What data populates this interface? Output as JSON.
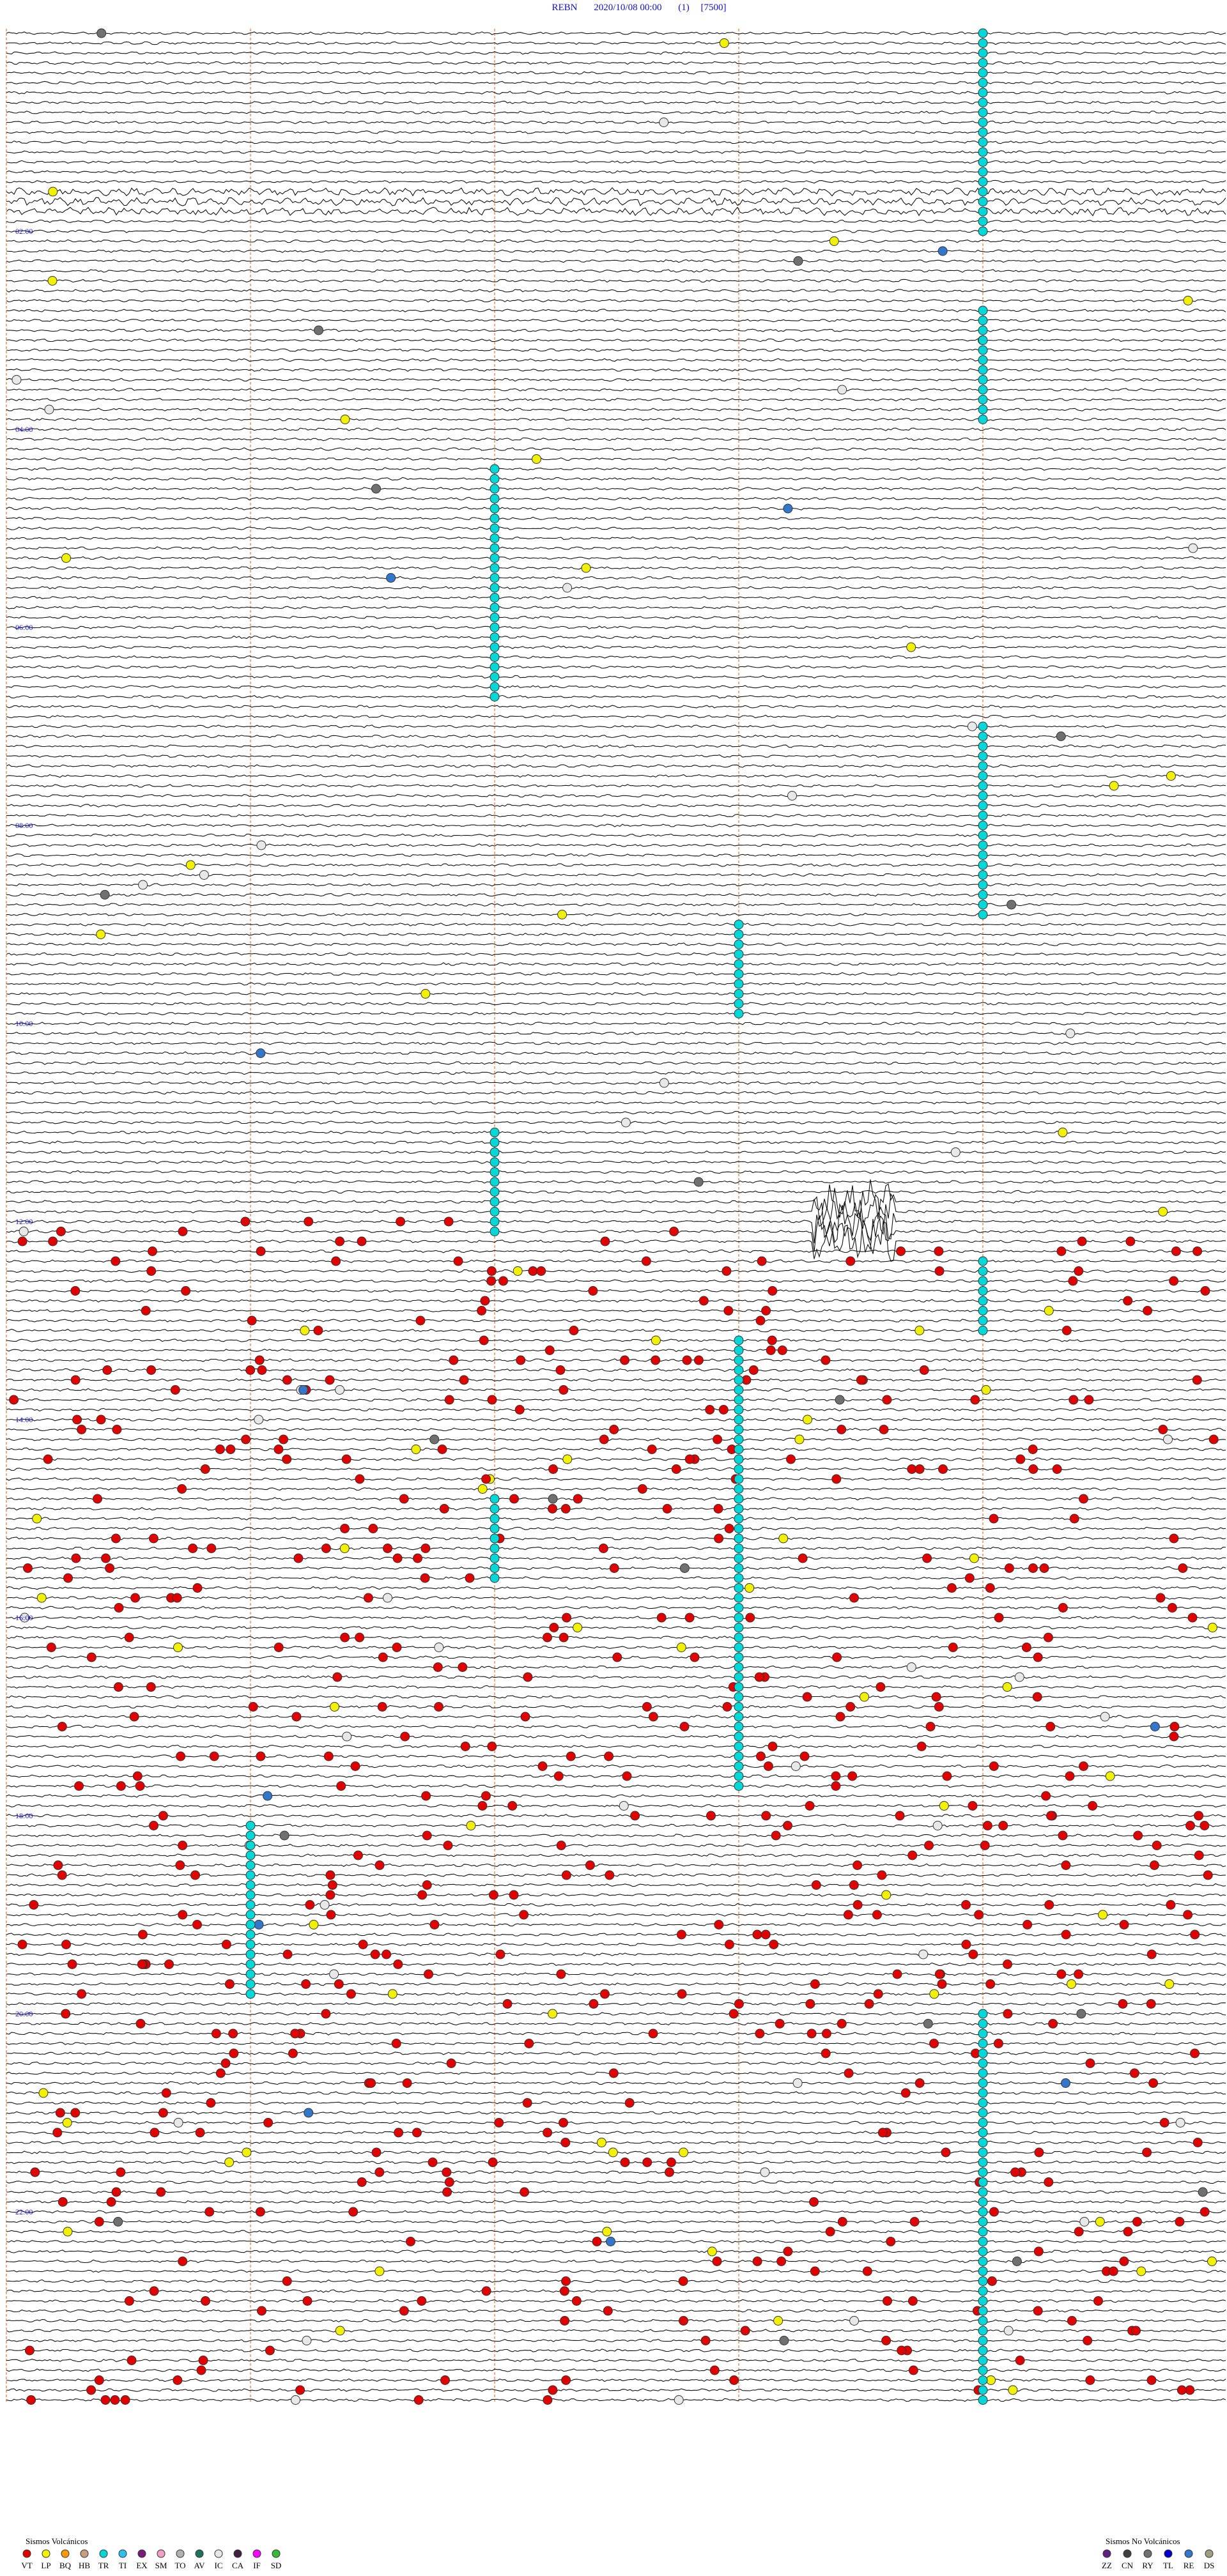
{
  "header": {
    "station": "REBN",
    "datetime": "2020/10/08 00:00",
    "channel": "(1)",
    "scale": "[7500]"
  },
  "hour_labels": [
    "02:00",
    "04:00",
    "06:00",
    "08:00",
    "10:00",
    "12:00",
    "14:00",
    "16:00",
    "18:00",
    "20:00",
    "22:00"
  ],
  "legend_volcanic": {
    "title": "Sismos Volcánicos",
    "items": [
      {
        "code": "VT",
        "color": "#e00000"
      },
      {
        "code": "LP",
        "color": "#f2f200"
      },
      {
        "code": "BQ",
        "color": "#ff9900"
      },
      {
        "code": "HB",
        "color": "#c8a080"
      },
      {
        "code": "TR",
        "color": "#00d8d8"
      },
      {
        "code": "TI",
        "color": "#30c0f0"
      },
      {
        "code": "EX",
        "color": "#7a1a7a"
      },
      {
        "code": "SM",
        "color": "#f0a0c8"
      },
      {
        "code": "TO",
        "color": "#b0b0b0"
      },
      {
        "code": "AV",
        "color": "#207060"
      },
      {
        "code": "IC",
        "color": "#e8e8e8"
      },
      {
        "code": "CA",
        "color": "#402040"
      },
      {
        "code": "IF",
        "color": "#ff00ff"
      },
      {
        "code": "SD",
        "color": "#33bb33"
      }
    ]
  },
  "legend_non_volcanic": {
    "title": "Sismos No Volcánicos",
    "items": [
      {
        "code": "ZZ",
        "color": "#602080"
      },
      {
        "code": "CN",
        "color": "#404040"
      },
      {
        "code": "RY",
        "color": "#707070"
      },
      {
        "code": "TL",
        "color": "#0000cc"
      },
      {
        "code": "RE",
        "color": "#3377cc"
      },
      {
        "code": "DS",
        "color": "#a0a080"
      }
    ]
  }
}
